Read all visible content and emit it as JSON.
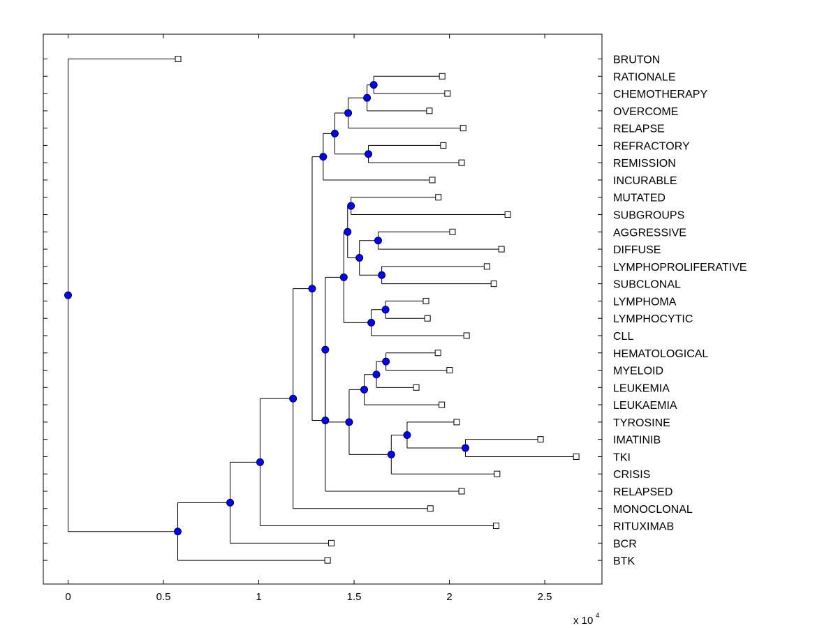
{
  "chart_data": {
    "type": "dendrogram",
    "title": "",
    "xlabel": "",
    "ylabel": "",
    "xlim": [
      -0.13,
      2.8
    ],
    "x_scale_label": "x 10",
    "x_scale_exponent": "4",
    "x_ticks": [
      0,
      0.5,
      1,
      1.5,
      2,
      2.5
    ],
    "x_tick_labels": [
      "0",
      "0.5",
      "1",
      "1.5",
      "2",
      "2.5"
    ],
    "leaves": [
      {
        "label": "BRUTON",
        "x": 0.577
      },
      {
        "label": "RATIONALE",
        "x": 1.962
      },
      {
        "label": "CHEMOTHERAPY",
        "x": 1.99
      },
      {
        "label": "OVERCOME",
        "x": 1.895
      },
      {
        "label": "RELAPSE",
        "x": 2.072
      },
      {
        "label": "REFRACTORY",
        "x": 1.968
      },
      {
        "label": "REMISSION",
        "x": 2.064
      },
      {
        "label": "INCURABLE",
        "x": 1.91
      },
      {
        "label": "MUTATED",
        "x": 1.942
      },
      {
        "label": "SUBGROUPS",
        "x": 2.306
      },
      {
        "label": "AGGRESSIVE",
        "x": 2.016
      },
      {
        "label": "DIFFUSE",
        "x": 2.273
      },
      {
        "label": "LYMPHOPROLIFERATIVE",
        "x": 2.197
      },
      {
        "label": "SUBCLONAL",
        "x": 2.233
      },
      {
        "label": "LYMPHOMA",
        "x": 1.877
      },
      {
        "label": "LYMPHOCYTIC",
        "x": 1.885
      },
      {
        "label": "CLL",
        "x": 2.09
      },
      {
        "label": "HEMATOLOGICAL",
        "x": 1.94
      },
      {
        "label": "MYELOID",
        "x": 2.001
      },
      {
        "label": "LEUKEMIA",
        "x": 1.826
      },
      {
        "label": "LEUKAEMIA",
        "x": 1.96
      },
      {
        "label": "TYROSINE",
        "x": 2.038
      },
      {
        "label": "IMATINIB",
        "x": 2.478
      },
      {
        "label": "TKI",
        "x": 2.665
      },
      {
        "label": "CRISIS",
        "x": 2.25
      },
      {
        "label": "RELAPSED",
        "x": 2.064
      },
      {
        "label": "MONOCLONAL",
        "x": 1.9
      },
      {
        "label": "RITUXIMAB",
        "x": 2.245
      },
      {
        "label": "BCR",
        "x": 1.381
      },
      {
        "label": "BTK",
        "x": 1.361
      }
    ],
    "merges": [
      {
        "id": "m1",
        "x": 1.603,
        "children": [
          1,
          2
        ]
      },
      {
        "id": "m2",
        "x": 1.568,
        "children": [
          "m1",
          3
        ]
      },
      {
        "id": "m3",
        "x": 1.469,
        "children": [
          "m2",
          4
        ]
      },
      {
        "id": "m4",
        "x": 1.575,
        "children": [
          5,
          6
        ]
      },
      {
        "id": "m5",
        "x": 1.399,
        "children": [
          "m3",
          "m4"
        ]
      },
      {
        "id": "m6",
        "x": 1.338,
        "children": [
          "m5",
          7
        ]
      },
      {
        "id": "m7",
        "x": 1.484,
        "children": [
          8,
          9
        ]
      },
      {
        "id": "m8",
        "x": 1.626,
        "children": [
          10,
          11
        ]
      },
      {
        "id": "m9",
        "x": 1.645,
        "children": [
          12,
          13
        ]
      },
      {
        "id": "m10",
        "x": 1.528,
        "children": [
          "m8",
          "m9"
        ]
      },
      {
        "id": "m11",
        "x": 1.466,
        "children": [
          "m7",
          "m10"
        ]
      },
      {
        "id": "m12",
        "x": 1.665,
        "children": [
          14,
          15
        ]
      },
      {
        "id": "m13",
        "x": 1.59,
        "children": [
          "m12",
          16
        ]
      },
      {
        "id": "m14",
        "x": 1.446,
        "children": [
          "m11",
          "m13"
        ]
      },
      {
        "id": "m15",
        "x": 1.667,
        "children": [
          17,
          18
        ]
      },
      {
        "id": "m16",
        "x": 1.617,
        "children": [
          "m15",
          19
        ]
      },
      {
        "id": "m17",
        "x": 1.553,
        "children": [
          "m16",
          20
        ]
      },
      {
        "id": "m18",
        "x": 1.778,
        "children": [
          21,
          "m19"
        ]
      },
      {
        "id": "m19",
        "x": 2.084,
        "children": [
          22,
          23
        ]
      },
      {
        "id": "m20",
        "x": 1.695,
        "children": [
          "m18",
          24
        ]
      },
      {
        "id": "m21",
        "x": 1.474,
        "children": [
          "m17",
          "m20"
        ]
      },
      {
        "id": "m22",
        "x": 1.349,
        "children": [
          "m14",
          "m21"
        ]
      },
      {
        "id": "m23",
        "x": 1.349,
        "children": [
          "m22",
          25
        ]
      },
      {
        "id": "m24",
        "x": 1.28,
        "children": [
          "m6",
          "m23"
        ]
      },
      {
        "id": "m25",
        "x": 1.18,
        "children": [
          "m24",
          26
        ]
      },
      {
        "id": "m26",
        "x": 1.007,
        "children": [
          "m25",
          27
        ]
      },
      {
        "id": "m27",
        "x": 0.85,
        "children": [
          "m26",
          28
        ]
      },
      {
        "id": "m28",
        "x": 0.575,
        "children": [
          "m27",
          29
        ]
      },
      {
        "id": "m29",
        "x": 0.0,
        "children": [
          0,
          "m28"
        ]
      }
    ],
    "colors": {
      "node_fill": "#0000ff",
      "node_stroke": "#000033",
      "line": "#000000",
      "leaf_fill": "#ffffff"
    }
  }
}
